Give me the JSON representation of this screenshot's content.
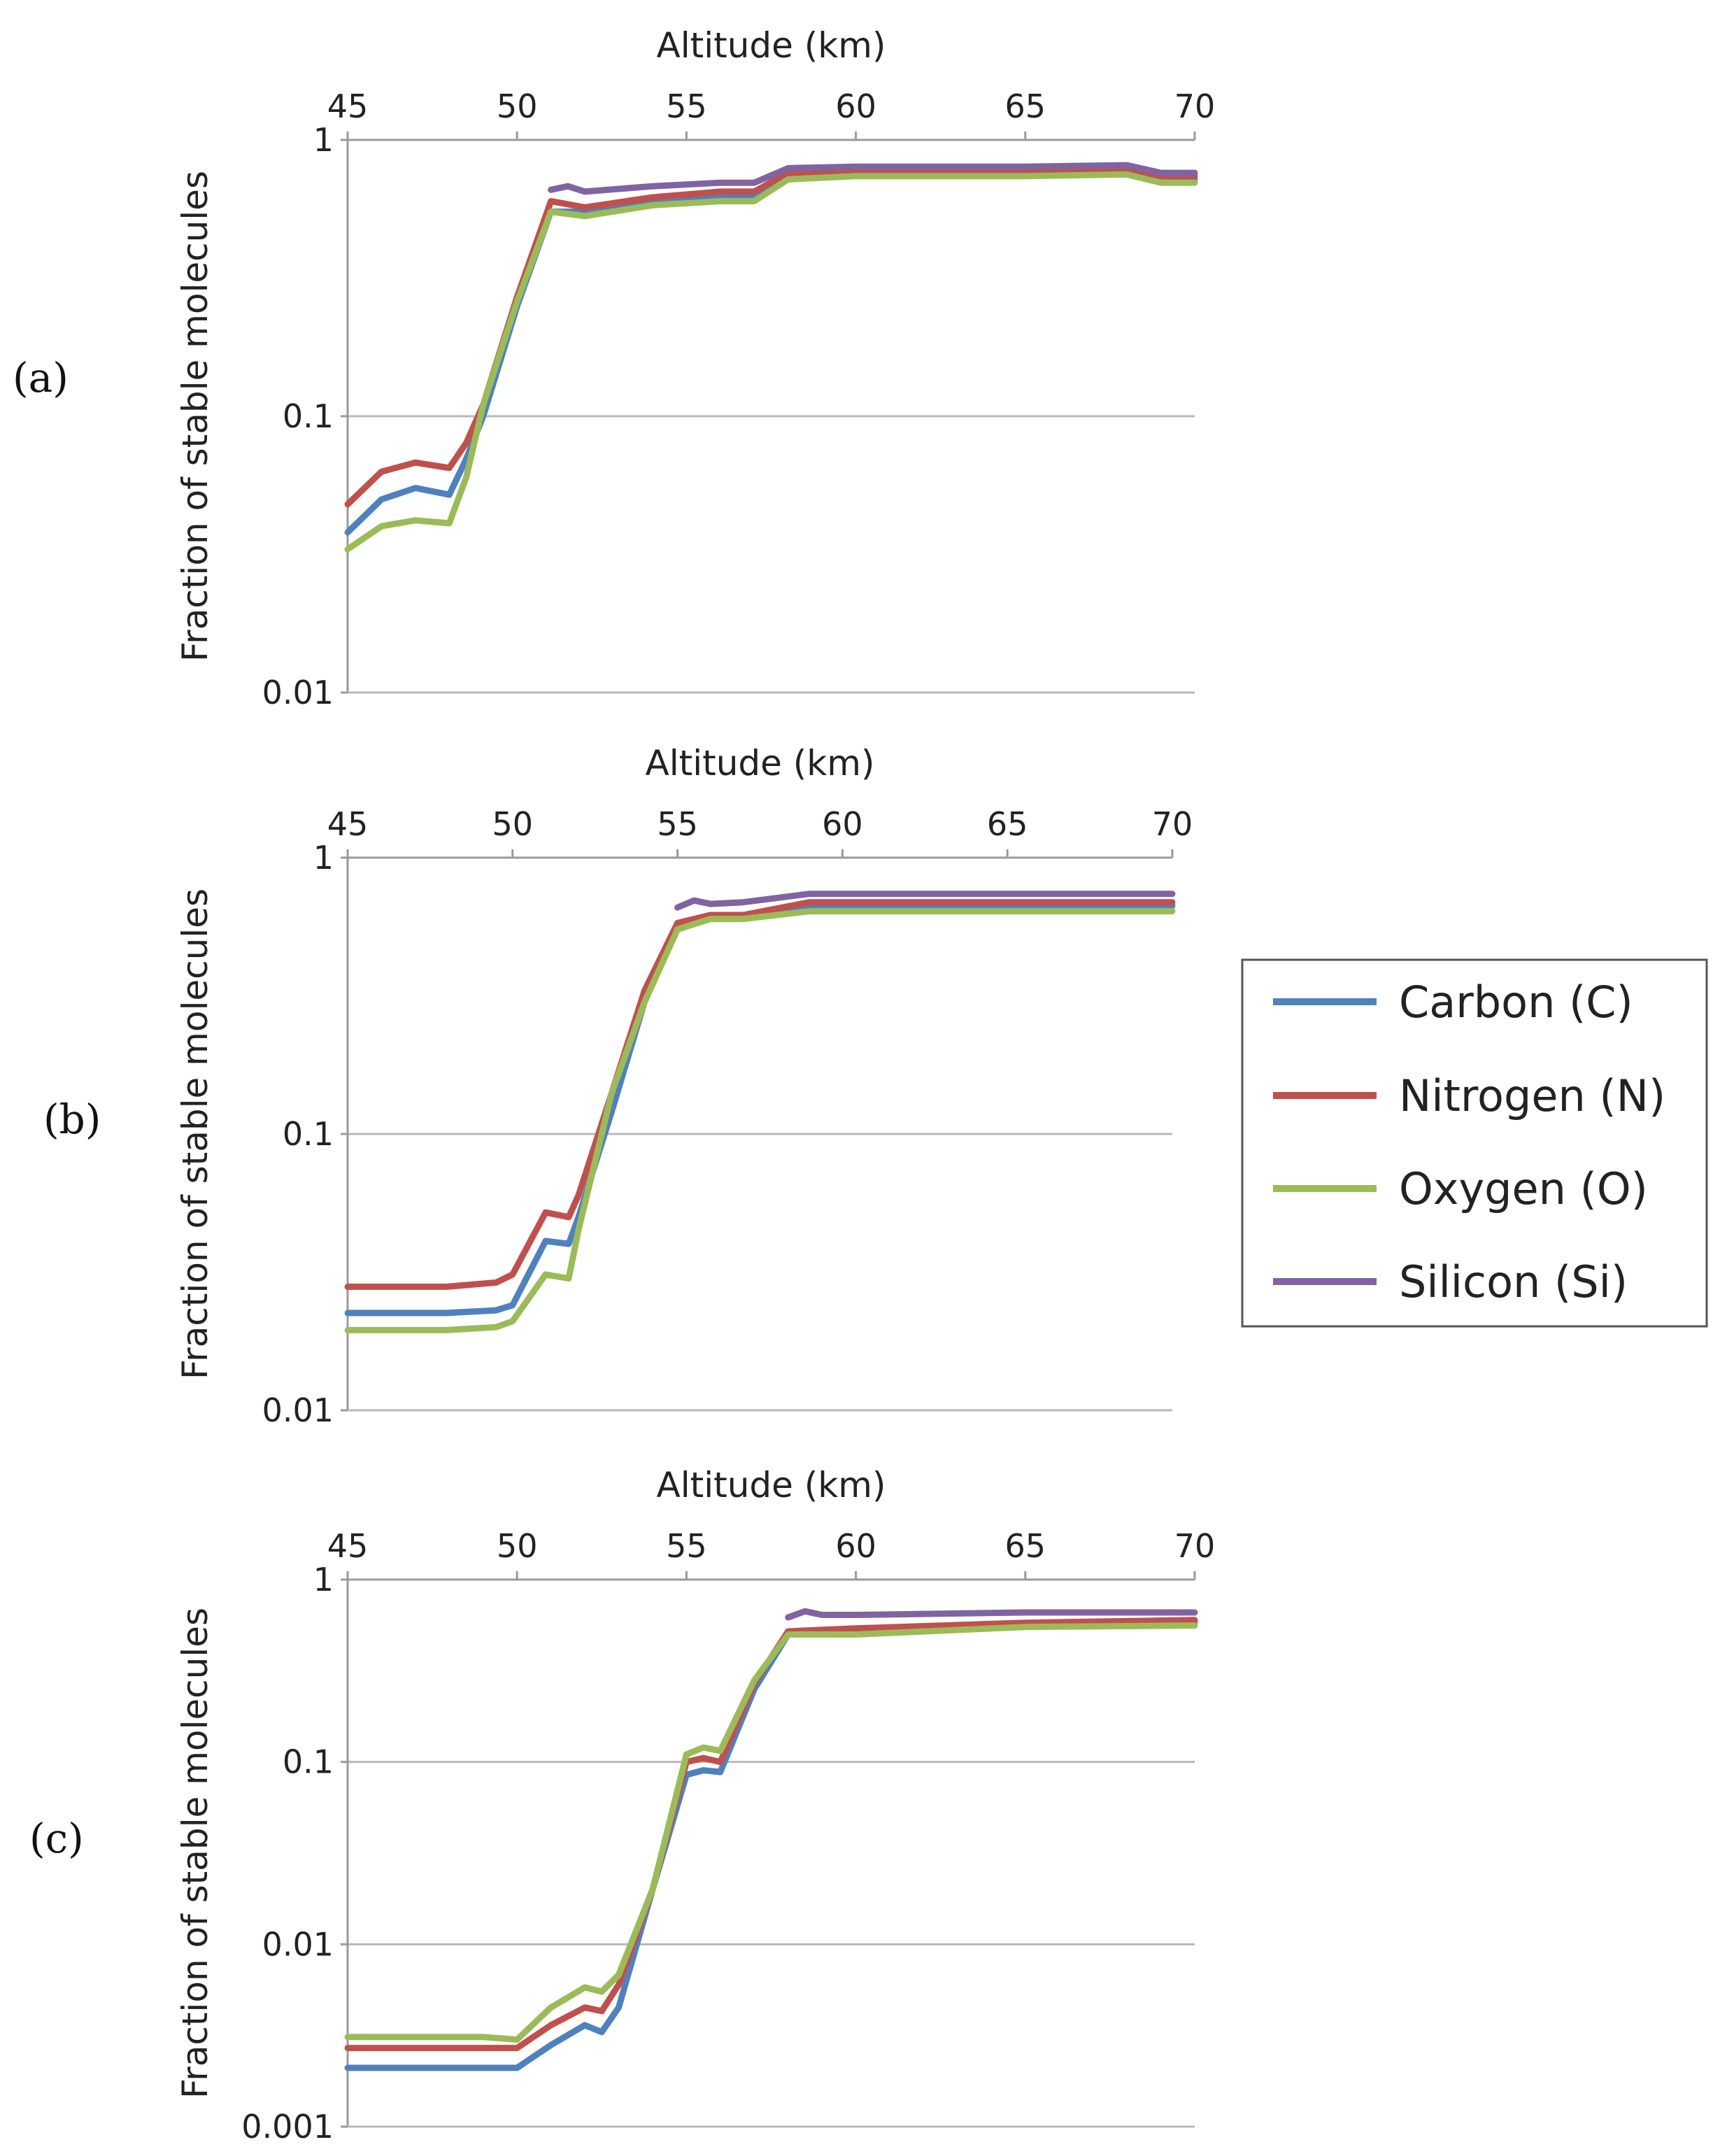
{
  "chart_data": [
    {
      "type": "line",
      "panel_label": "(a)",
      "xlabel": "Altitude (km)",
      "ylabel": "Fraction of stable molecules",
      "xlim": [
        45,
        70
      ],
      "xticks": [
        "45",
        "50",
        "55",
        "60",
        "65",
        "70"
      ],
      "ylim": [
        0.01,
        1
      ],
      "yscale": "log",
      "yticks": [
        "1",
        "0.1",
        "0.01"
      ],
      "series": [
        {
          "name": "Carbon (C)",
          "x": [
            45,
            46,
            47,
            48,
            48.5,
            49,
            50,
            51,
            52,
            54,
            56,
            57,
            58,
            60,
            65,
            68,
            69,
            70
          ],
          "values": [
            0.038,
            0.05,
            0.055,
            0.052,
            0.07,
            0.1,
            0.25,
            0.55,
            0.55,
            0.6,
            0.63,
            0.63,
            0.74,
            0.76,
            0.76,
            0.77,
            0.72,
            0.72
          ]
        },
        {
          "name": "Nitrogen (N)",
          "x": [
            45,
            46,
            47,
            48,
            48.5,
            49,
            50,
            51,
            52,
            54,
            56,
            57,
            58,
            60,
            65,
            68,
            69,
            70
          ],
          "values": [
            0.048,
            0.063,
            0.068,
            0.065,
            0.08,
            0.11,
            0.27,
            0.6,
            0.57,
            0.62,
            0.65,
            0.65,
            0.76,
            0.78,
            0.78,
            0.79,
            0.74,
            0.74
          ]
        },
        {
          "name": "Oxygen (O)",
          "x": [
            45,
            46,
            47,
            48,
            48.5,
            49,
            50,
            51,
            52,
            54,
            56,
            57,
            58,
            60,
            65,
            68,
            69,
            70
          ],
          "values": [
            0.033,
            0.04,
            0.042,
            0.041,
            0.06,
            0.11,
            0.26,
            0.55,
            0.53,
            0.58,
            0.6,
            0.6,
            0.72,
            0.74,
            0.74,
            0.75,
            0.7,
            0.7
          ]
        },
        {
          "name": "Silicon (Si)",
          "x": [
            51,
            51.5,
            52,
            54,
            56,
            57,
            58,
            60,
            65,
            68,
            69,
            70
          ],
          "values": [
            0.66,
            0.68,
            0.65,
            0.68,
            0.7,
            0.7,
            0.79,
            0.8,
            0.8,
            0.81,
            0.76,
            0.76
          ]
        }
      ]
    },
    {
      "type": "line",
      "panel_label": "(b)",
      "xlabel": "Altitude (km)",
      "ylabel": "Fraction of stable molecules",
      "xlim": [
        45,
        70
      ],
      "xticks": [
        "45",
        "50",
        "55",
        "60",
        "65",
        "70"
      ],
      "ylim": [
        0.01,
        1
      ],
      "yscale": "log",
      "yticks": [
        "1",
        "0.1",
        "0.01"
      ],
      "series": [
        {
          "name": "Carbon (C)",
          "x": [
            45,
            48,
            49.5,
            50,
            51,
            51.7,
            52,
            53,
            54,
            55,
            56,
            57,
            59,
            70
          ],
          "values": [
            0.0225,
            0.0225,
            0.023,
            0.024,
            0.041,
            0.04,
            0.05,
            0.12,
            0.3,
            0.56,
            0.61,
            0.61,
            0.67,
            0.67
          ]
        },
        {
          "name": "Nitrogen (N)",
          "x": [
            45,
            48,
            49.5,
            50,
            51,
            51.7,
            52,
            53,
            54,
            55,
            56,
            57,
            59,
            70
          ],
          "values": [
            0.028,
            0.028,
            0.029,
            0.031,
            0.052,
            0.05,
            0.06,
            0.14,
            0.33,
            0.58,
            0.62,
            0.62,
            0.69,
            0.69
          ]
        },
        {
          "name": "Oxygen (O)",
          "x": [
            45,
            48,
            49.5,
            50,
            51,
            51.7,
            52,
            53,
            54,
            55,
            56,
            57,
            59,
            70
          ],
          "values": [
            0.0195,
            0.0195,
            0.02,
            0.021,
            0.031,
            0.03,
            0.045,
            0.14,
            0.3,
            0.55,
            0.6,
            0.6,
            0.64,
            0.64
          ]
        },
        {
          "name": "Silicon (Si)",
          "x": [
            55,
            55.5,
            56,
            57,
            59,
            70
          ],
          "values": [
            0.66,
            0.7,
            0.68,
            0.69,
            0.74,
            0.74
          ]
        }
      ]
    },
    {
      "type": "line",
      "panel_label": "(c)",
      "xlabel": "Altitude (km)",
      "ylabel": "Fraction of stable molecules",
      "xlim": [
        45,
        70
      ],
      "xticks": [
        "45",
        "50",
        "55",
        "60",
        "65",
        "70"
      ],
      "ylim": [
        0.001,
        1
      ],
      "yscale": "log",
      "yticks": [
        "1",
        "0.1",
        "0.01",
        "0.001"
      ],
      "series": [
        {
          "name": "Carbon (C)",
          "x": [
            45,
            49,
            50,
            51,
            52,
            52.5,
            53,
            54,
            55,
            55.5,
            56,
            57,
            58,
            60,
            65,
            70
          ],
          "values": [
            0.0021,
            0.0021,
            0.0021,
            0.0028,
            0.0036,
            0.0033,
            0.0045,
            0.02,
            0.085,
            0.09,
            0.088,
            0.25,
            0.5,
            0.52,
            0.56,
            0.58
          ]
        },
        {
          "name": "Nitrogen (N)",
          "x": [
            45,
            49,
            50,
            51,
            52,
            52.5,
            53,
            54,
            55,
            55.5,
            56,
            57,
            58,
            60,
            65,
            70
          ],
          "values": [
            0.0027,
            0.0027,
            0.0027,
            0.0036,
            0.0045,
            0.0043,
            0.006,
            0.02,
            0.1,
            0.105,
            0.1,
            0.27,
            0.52,
            0.54,
            0.58,
            0.6
          ]
        },
        {
          "name": "Oxygen (O)",
          "x": [
            45,
            49,
            50,
            51,
            52,
            52.5,
            53,
            54,
            55,
            55.5,
            56,
            57,
            58,
            60,
            65,
            70
          ],
          "values": [
            0.0031,
            0.0031,
            0.003,
            0.0045,
            0.0058,
            0.0055,
            0.0068,
            0.02,
            0.11,
            0.12,
            0.115,
            0.28,
            0.5,
            0.5,
            0.55,
            0.56
          ]
        },
        {
          "name": "Silicon (Si)",
          "x": [
            58,
            58.5,
            59,
            60,
            65,
            70
          ],
          "values": [
            0.62,
            0.67,
            0.64,
            0.64,
            0.66,
            0.66
          ]
        }
      ]
    }
  ],
  "legend": {
    "items": [
      {
        "label": "Carbon (C)",
        "color": "#4f81bd"
      },
      {
        "label": "Nitrogen (N)",
        "color": "#c0504d"
      },
      {
        "label": "Oxygen (O)",
        "color": "#9bbb59"
      },
      {
        "label": "Silicon (Si)",
        "color": "#8064a2"
      }
    ]
  }
}
